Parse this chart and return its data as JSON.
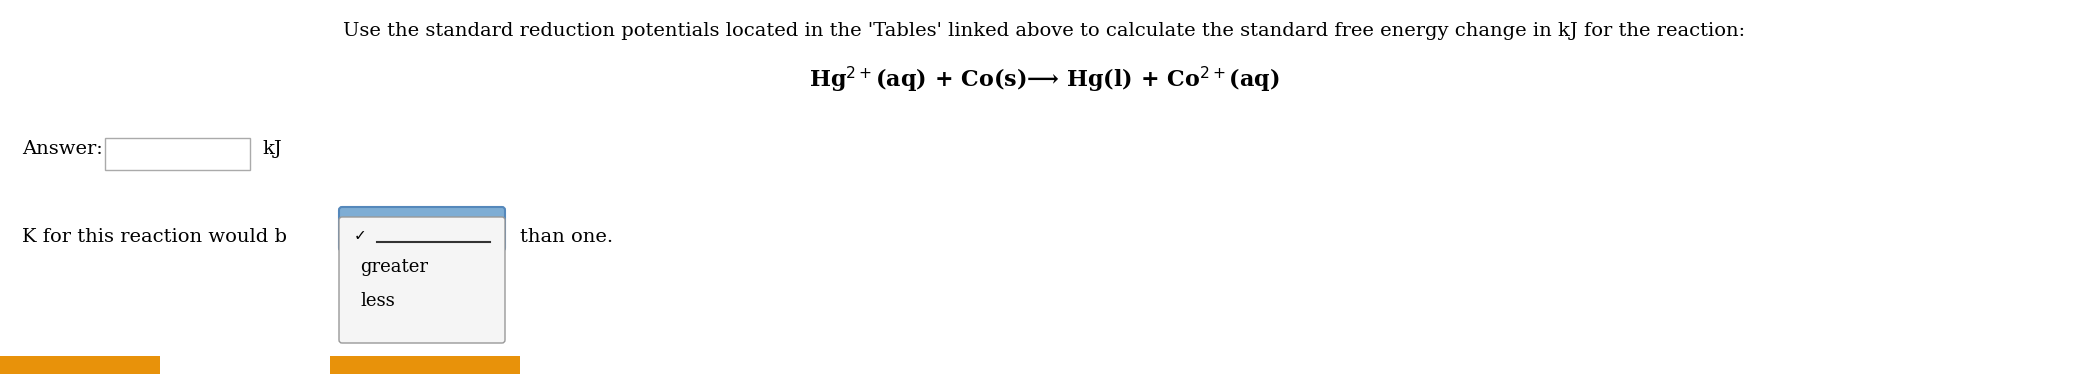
{
  "background_color": "#ffffff",
  "main_text": "Use the standard reduction potentials located in the 'Tables' linked above to calculate the standard free energy change in kJ for the reaction:",
  "reaction_line1": "Hg$^{2+}$(aq) + Co(s)",
  "reaction_arrow": "⟶",
  "reaction_line2": " Hg(l) + Co$^{2+}$(aq)",
  "answer_label": "Answer:",
  "answer_unit": "kJ",
  "k_text_before": "K for this reaction would b",
  "k_text_after": "than one.",
  "dropdown_options": [
    "greater",
    "less"
  ],
  "dropdown_selected_line_color": "#333333",
  "dropdown_bg": "#f5f5f5",
  "dropdown_border": "#999999",
  "dropdown_header_bg": "#7eadd4",
  "answer_box_color": "#aaaaaa",
  "orange_bar_color": "#e8920a",
  "checkmark": "✓",
  "main_fontsize": 14,
  "reaction_fontsize": 16,
  "answer_fontsize": 14,
  "k_fontsize": 14,
  "dropdown_fontsize": 13
}
